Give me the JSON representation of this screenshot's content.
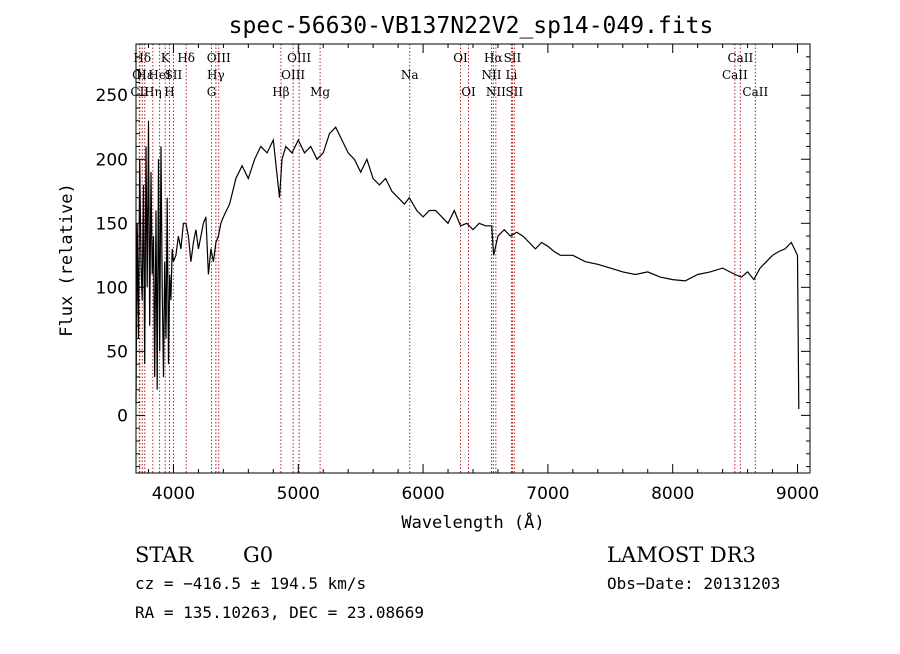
{
  "chart_data": {
    "type": "line",
    "title": "spec-56630-VB137N22V2_sp14-049.fits",
    "xlabel": "Wavelength (Å)",
    "ylabel": "Flux (relative)",
    "xlim": [
      3700,
      9100
    ],
    "ylim": [
      -45,
      290
    ],
    "xticks": [
      4000,
      5000,
      6000,
      7000,
      8000,
      9000
    ],
    "yticks": [
      0,
      50,
      100,
      150,
      200,
      250
    ],
    "grid": false,
    "line_color": "#000000",
    "marker_color": "#b22222",
    "series": [
      {
        "x": [
          3700,
          3710,
          3720,
          3730,
          3740,
          3750,
          3760,
          3770,
          3780,
          3790,
          3800,
          3810,
          3820,
          3830,
          3840,
          3850,
          3860,
          3870,
          3880,
          3890,
          3900,
          3910,
          3920,
          3930,
          3940,
          3950,
          3960,
          3970,
          3980,
          3990,
          4000,
          4020,
          4040,
          4060,
          4080,
          4100,
          4120,
          4140,
          4160,
          4180,
          4200,
          4220,
          4240,
          4260,
          4280,
          4300,
          4320,
          4340,
          4360,
          4380,
          4400,
          4450,
          4500,
          4550,
          4600,
          4650,
          4700,
          4750,
          4800,
          4850,
          4870,
          4900,
          4950,
          5000,
          5050,
          5100,
          5150,
          5200,
          5250,
          5300,
          5350,
          5400,
          5450,
          5500,
          5550,
          5600,
          5650,
          5700,
          5750,
          5800,
          5850,
          5890,
          5950,
          6000,
          6050,
          6100,
          6150,
          6200,
          6250,
          6300,
          6350,
          6400,
          6450,
          6500,
          6550,
          6565,
          6600,
          6650,
          6700,
          6750,
          6800,
          6850,
          6900,
          6950,
          7000,
          7050,
          7100,
          7200,
          7300,
          7400,
          7500,
          7600,
          7700,
          7800,
          7900,
          8000,
          8100,
          8200,
          8300,
          8400,
          8500,
          8550,
          8600,
          8650,
          8700,
          8750,
          8800,
          8850,
          8900,
          8950,
          9000,
          9010
        ],
        "y": [
          10,
          150,
          60,
          200,
          120,
          90,
          180,
          40,
          210,
          100,
          230,
          70,
          190,
          110,
          140,
          30,
          160,
          20,
          200,
          50,
          210,
          100,
          30,
          120,
          60,
          170,
          40,
          110,
          90,
          130,
          120,
          125,
          140,
          130,
          150,
          150,
          140,
          120,
          135,
          145,
          130,
          140,
          150,
          155,
          110,
          130,
          120,
          135,
          140,
          150,
          155,
          165,
          185,
          195,
          185,
          200,
          210,
          205,
          215,
          170,
          200,
          210,
          205,
          215,
          205,
          210,
          200,
          205,
          220,
          225,
          215,
          205,
          200,
          190,
          200,
          185,
          180,
          185,
          175,
          170,
          165,
          170,
          160,
          155,
          160,
          160,
          155,
          150,
          160,
          148,
          150,
          145,
          150,
          148,
          148,
          125,
          140,
          145,
          140,
          143,
          140,
          135,
          130,
          135,
          132,
          128,
          125,
          125,
          120,
          118,
          115,
          112,
          110,
          112,
          108,
          106,
          105,
          110,
          112,
          115,
          110,
          108,
          112,
          106,
          115,
          120,
          125,
          128,
          130,
          135,
          125,
          5
        ]
      }
    ],
    "line_markers": [
      {
        "name": "Hδ",
        "x": 3750,
        "row": 1
      },
      {
        "name": "OI",
        "x": 3727,
        "row": 2
      },
      {
        "name": "CII",
        "x": 3730,
        "row": 3
      },
      {
        "name": "Hε",
        "x": 3770,
        "row": 2
      },
      {
        "name": "Hη",
        "x": 3835,
        "row": 3
      },
      {
        "name": "K",
        "x": 3934,
        "row": 1
      },
      {
        "name": "HeI",
        "x": 3889,
        "row": 2
      },
      {
        "name": "H",
        "x": 3968,
        "row": 3
      },
      {
        "name": "SII",
        "x": 4000,
        "row": 2
      },
      {
        "name": "Hδ",
        "x": 4102,
        "row": 1
      },
      {
        "name": "OIII",
        "x": 4363,
        "row": 1
      },
      {
        "name": "Hγ",
        "x": 4340,
        "row": 2
      },
      {
        "name": "G",
        "x": 4305,
        "row": 3
      },
      {
        "name": "Hβ",
        "x": 4861,
        "row": 3
      },
      {
        "name": "OIII",
        "x": 5007,
        "row": 1
      },
      {
        "name": "OIII",
        "x": 4959,
        "row": 2
      },
      {
        "name": "Mg",
        "x": 5175,
        "row": 3
      },
      {
        "name": "Na",
        "x": 5893,
        "row": 2
      },
      {
        "name": "OI",
        "x": 6300,
        "row": 1
      },
      {
        "name": "OI",
        "x": 6364,
        "row": 3
      },
      {
        "name": "Hα",
        "x": 6563,
        "row": 1
      },
      {
        "name": "NII",
        "x": 6548,
        "row": 2
      },
      {
        "name": "NII",
        "x": 6583,
        "row": 3
      },
      {
        "name": "SII",
        "x": 6716,
        "row": 1
      },
      {
        "name": "Li",
        "x": 6708,
        "row": 2
      },
      {
        "name": "SII",
        "x": 6731,
        "row": 3
      },
      {
        "name": "CaII",
        "x": 8542,
        "row": 1
      },
      {
        "name": "CaII",
        "x": 8498,
        "row": 2
      },
      {
        "name": "CaII",
        "x": 8662,
        "row": 3
      }
    ]
  },
  "info": {
    "class_label": "STAR",
    "subclass": "G0",
    "survey": "LAMOST DR3",
    "cz": "cz = −416.5 ± 194.5 km/s",
    "obs_date": "Obs−Date: 20131203",
    "radec": "RA = 135.10263, DEC =  23.08669"
  }
}
